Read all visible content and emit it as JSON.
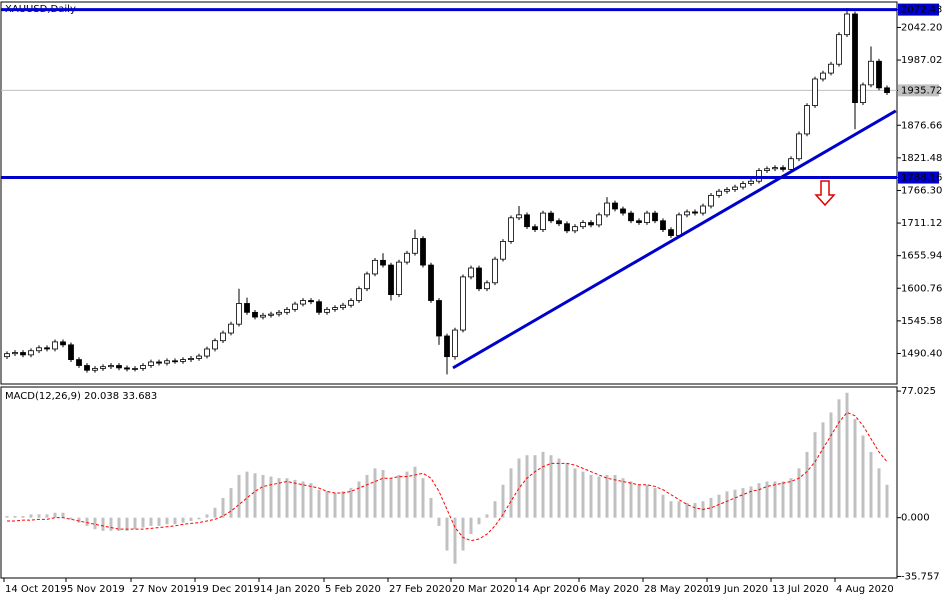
{
  "chart_data": [
    {
      "type": "candlestick",
      "title": "XAUUSD,Daily",
      "open": [
        1485,
        1490,
        1492,
        1488,
        1495,
        1500,
        1498,
        1510,
        1505,
        1480,
        1470,
        1462,
        1465,
        1468,
        1470,
        1466,
        1464,
        1465,
        1470,
        1476,
        1474,
        1478,
        1477,
        1480,
        1482,
        1486,
        1498,
        1512,
        1525,
        1540,
        1575,
        1560,
        1552,
        1555,
        1557,
        1560,
        1565,
        1574,
        1580,
        1578,
        1560,
        1565,
        1568,
        1572,
        1580,
        1600,
        1625,
        1648,
        1640,
        1590,
        1645,
        1660,
        1685,
        1640,
        1580,
        1520,
        1485,
        1530,
        1620,
        1635,
        1600,
        1610,
        1650,
        1680,
        1720,
        1725,
        1705,
        1700,
        1728,
        1715,
        1710,
        1698,
        1705,
        1712,
        1708,
        1725,
        1745,
        1735,
        1728,
        1715,
        1712,
        1728,
        1715,
        1700,
        1690,
        1725,
        1730,
        1728,
        1740,
        1758,
        1765,
        1768,
        1772,
        1778,
        1782,
        1800,
        1803,
        1805,
        1802,
        1820,
        1862,
        1910,
        1955,
        1965,
        1980,
        2030,
        2065,
        1915,
        1945,
        1985,
        1940
      ],
      "high": [
        1494,
        1496,
        1496,
        1499,
        1504,
        1504,
        1514,
        1514,
        1509,
        1484,
        1474,
        1469,
        1472,
        1474,
        1474,
        1470,
        1469,
        1474,
        1480,
        1480,
        1482,
        1482,
        1484,
        1486,
        1490,
        1502,
        1516,
        1529,
        1544,
        1600,
        1585,
        1564,
        1559,
        1561,
        1564,
        1569,
        1578,
        1584,
        1584,
        1582,
        1569,
        1572,
        1576,
        1584,
        1604,
        1629,
        1652,
        1660,
        1644,
        1649,
        1664,
        1700,
        1689,
        1644,
        1584,
        1524,
        1534,
        1624,
        1639,
        1639,
        1614,
        1654,
        1684,
        1724,
        1740,
        1729,
        1709,
        1732,
        1732,
        1719,
        1714,
        1709,
        1716,
        1716,
        1729,
        1755,
        1749,
        1739,
        1732,
        1719,
        1732,
        1732,
        1719,
        1704,
        1729,
        1734,
        1734,
        1744,
        1762,
        1769,
        1772,
        1776,
        1782,
        1786,
        1804,
        1807,
        1809,
        1809,
        1824,
        1866,
        1914,
        1959,
        1969,
        1984,
        2034,
        2075,
        2069,
        1949,
        2010,
        1989,
        1944
      ],
      "low": [
        1481,
        1486,
        1484,
        1484,
        1491,
        1494,
        1494,
        1501,
        1476,
        1466,
        1458,
        1458,
        1461,
        1464,
        1462,
        1460,
        1460,
        1461,
        1466,
        1470,
        1470,
        1473,
        1473,
        1476,
        1478,
        1482,
        1494,
        1508,
        1521,
        1536,
        1556,
        1548,
        1548,
        1551,
        1553,
        1556,
        1561,
        1570,
        1574,
        1556,
        1556,
        1561,
        1564,
        1568,
        1576,
        1596,
        1621,
        1636,
        1580,
        1586,
        1641,
        1656,
        1636,
        1576,
        1505,
        1455,
        1480,
        1526,
        1616,
        1596,
        1596,
        1606,
        1646,
        1676,
        1716,
        1701,
        1696,
        1696,
        1711,
        1706,
        1694,
        1694,
        1701,
        1704,
        1704,
        1721,
        1731,
        1724,
        1711,
        1708,
        1708,
        1711,
        1696,
        1686,
        1686,
        1721,
        1724,
        1724,
        1736,
        1754,
        1761,
        1764,
        1768,
        1774,
        1778,
        1796,
        1799,
        1798,
        1798,
        1816,
        1858,
        1906,
        1951,
        1961,
        1976,
        2026,
        1870,
        1911,
        1941,
        1936,
        1928
      ],
      "close": [
        1490,
        1492,
        1488,
        1495,
        1500,
        1498,
        1510,
        1505,
        1480,
        1470,
        1462,
        1465,
        1468,
        1470,
        1466,
        1464,
        1465,
        1470,
        1476,
        1474,
        1478,
        1477,
        1480,
        1482,
        1486,
        1498,
        1512,
        1525,
        1540,
        1575,
        1560,
        1552,
        1555,
        1557,
        1560,
        1565,
        1574,
        1580,
        1578,
        1560,
        1565,
        1568,
        1572,
        1580,
        1600,
        1625,
        1648,
        1640,
        1590,
        1645,
        1660,
        1685,
        1640,
        1580,
        1520,
        1485,
        1530,
        1620,
        1635,
        1600,
        1610,
        1650,
        1680,
        1720,
        1725,
        1705,
        1700,
        1728,
        1715,
        1710,
        1698,
        1705,
        1712,
        1708,
        1725,
        1745,
        1735,
        1728,
        1715,
        1712,
        1728,
        1715,
        1700,
        1690,
        1725,
        1730,
        1728,
        1740,
        1758,
        1765,
        1768,
        1772,
        1778,
        1782,
        1800,
        1803,
        1805,
        1802,
        1820,
        1862,
        1910,
        1955,
        1965,
        1980,
        2030,
        2065,
        1915,
        1945,
        1985,
        1940,
        1932
      ],
      "color_up": "#ffffff",
      "color_down": "#000000",
      "xlim": [
        -0.75,
        111.25
      ],
      "xticks": [
        {
          "value": -0.375,
          "label": "14 Oct 2019"
        },
        {
          "value": 7.375,
          "label": "5 Nov 2019"
        },
        {
          "value": 15.5,
          "label": "27 Nov 2019"
        },
        {
          "value": 23.5,
          "label": "19 Dec 2019"
        },
        {
          "value": 31.5,
          "label": "14 Jan 2020"
        },
        {
          "value": 39.625,
          "label": "5 Feb 2020"
        },
        {
          "value": 47.625,
          "label": "27 Feb 2020"
        },
        {
          "value": 55.5,
          "label": "20 Mar 2020"
        },
        {
          "value": 63.625,
          "label": "14 Apr 2020"
        },
        {
          "value": 71.5,
          "label": "6 May 2020"
        },
        {
          "value": 79.5,
          "label": "28 May 2020"
        },
        {
          "value": 87.5,
          "label": "19 Jun 2020"
        },
        {
          "value": 95.5,
          "label": "13 Jul 2020"
        },
        {
          "value": 103.5,
          "label": "4 Aug 2020"
        }
      ],
      "ylim": [
        1438.7,
        2085.3
      ],
      "yticks": [
        2072.43,
        {
          "value": 2042.2,
          "label": "2042.20"
        },
        1987.02,
        1935.72,
        1876.66,
        1821.48,
        1788.16,
        {
          "value": 1766.3,
          "label": "1766.30"
        },
        1711.12,
        1655.94,
        1600.76,
        1545.58,
        {
          "value": 1490.4,
          "label": "1490.40"
        }
      ],
      "hlines": [
        2072.43,
        1788.16
      ],
      "hline_color": "#0000cc",
      "price_line": 1935.72,
      "price_line_color": "#c0c0c0",
      "trendline": {
        "x": [
          55.75,
          111.1
        ],
        "values": [
          1466,
          1901
        ],
        "color": "#0000cc"
      }
    },
    {
      "type": "macd",
      "title": "MACD(12,26,9) 20.038 33.683",
      "histogram": [
        1,
        1,
        1,
        2,
        2,
        2,
        3,
        3,
        -1,
        -3,
        -5,
        -7,
        -8,
        -8,
        -8,
        -8,
        -7,
        -6,
        -5,
        -5,
        -4,
        -4,
        -3,
        -2,
        -1,
        2,
        6,
        12,
        18,
        26,
        28,
        27,
        26,
        25,
        24,
        24,
        23,
        22,
        21,
        17,
        16,
        15,
        16,
        18,
        22,
        26,
        30,
        29,
        24,
        26,
        28,
        31,
        24,
        12,
        -5,
        -20,
        -28,
        -20,
        -10,
        -4,
        2,
        10,
        20,
        30,
        36,
        38,
        38,
        40,
        38,
        36,
        33,
        30,
        28,
        26,
        25,
        26,
        26,
        24,
        22,
        20,
        20,
        18,
        14,
        10,
        10,
        9,
        9,
        10,
        12,
        14,
        16,
        17,
        18,
        19,
        21,
        22,
        22,
        22,
        24,
        30,
        40,
        52,
        58,
        64,
        72,
        76,
        60,
        50,
        40,
        30,
        20
      ],
      "histogram_color": "#c0c0c0",
      "signal": [
        -2,
        -2,
        -1.5,
        -1.5,
        -1,
        -1,
        0,
        0,
        -1,
        -2,
        -3,
        -4,
        -5,
        -6,
        -7,
        -7,
        -7,
        -7,
        -6.5,
        -6,
        -5.5,
        -5,
        -4,
        -3.5,
        -3,
        -2,
        -1,
        1,
        4,
        8,
        12,
        16,
        19,
        20,
        21,
        22,
        21,
        20,
        19,
        18,
        16,
        15,
        15,
        16,
        18,
        20,
        22,
        24,
        24,
        25,
        25,
        26,
        27,
        24,
        16,
        5,
        -6,
        -12,
        -14,
        -13,
        -10,
        -5,
        2,
        10,
        18,
        24,
        28,
        31,
        33,
        33,
        33,
        32,
        30,
        28,
        26,
        24,
        23,
        22,
        21,
        20,
        20,
        19,
        17,
        14,
        11,
        8,
        6,
        5,
        6,
        8,
        10,
        12,
        14,
        16,
        17,
        19,
        20,
        21,
        22,
        24,
        28,
        34,
        42,
        50,
        58,
        64,
        62,
        56,
        48,
        40,
        34
      ],
      "signal_color": "#ff0000",
      "ylim": [
        -36.7,
        79.5
      ],
      "yticks": [
        77.025,
        {
          "value": 0,
          "label": "0.000"
        },
        -35.757
      ]
    }
  ]
}
